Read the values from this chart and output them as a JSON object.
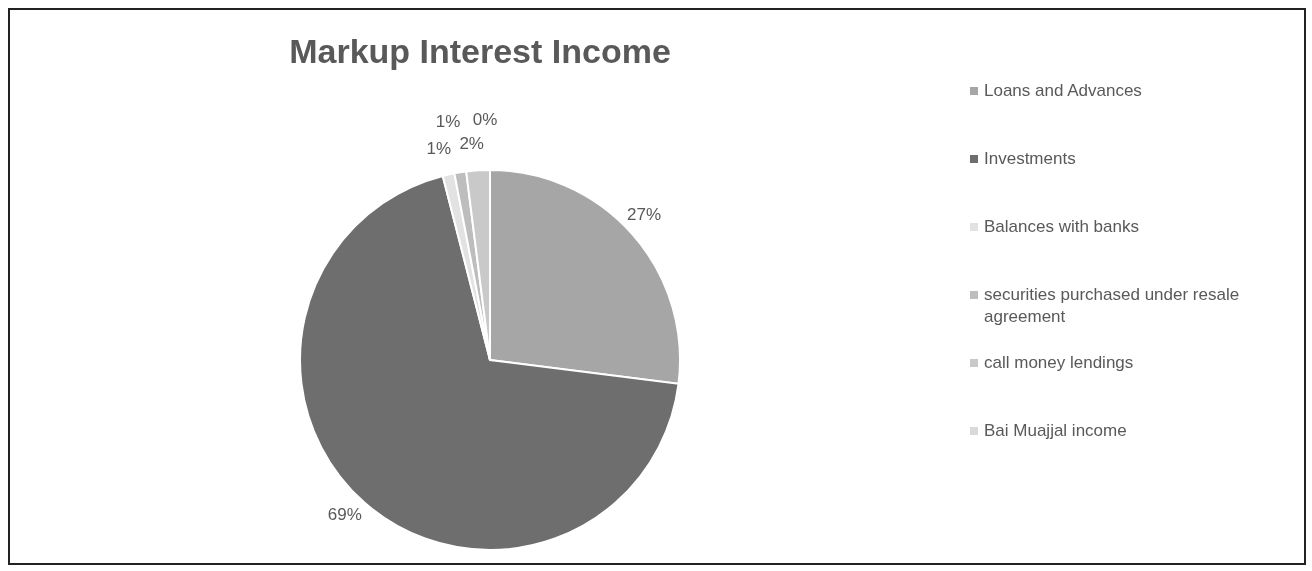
{
  "chart_data": {
    "type": "pie",
    "title": "Markup Interest Income",
    "categories": [
      "Loans and Advances",
      "Investments",
      "Balances with banks",
      "securities purchased under resale agreement",
      "call money lendings",
      "Bai Muajjal income"
    ],
    "values": [
      27,
      69,
      1,
      1,
      2,
      0
    ],
    "value_labels": [
      "27%",
      "69%",
      "1%",
      "1%",
      "2%",
      "0%"
    ],
    "colors": [
      "#a6a6a6",
      "#6e6e6e",
      "#e2e2e2",
      "#bdbdbd",
      "#c9c9c9",
      "#d9d9d9"
    ],
    "legend": "right"
  }
}
